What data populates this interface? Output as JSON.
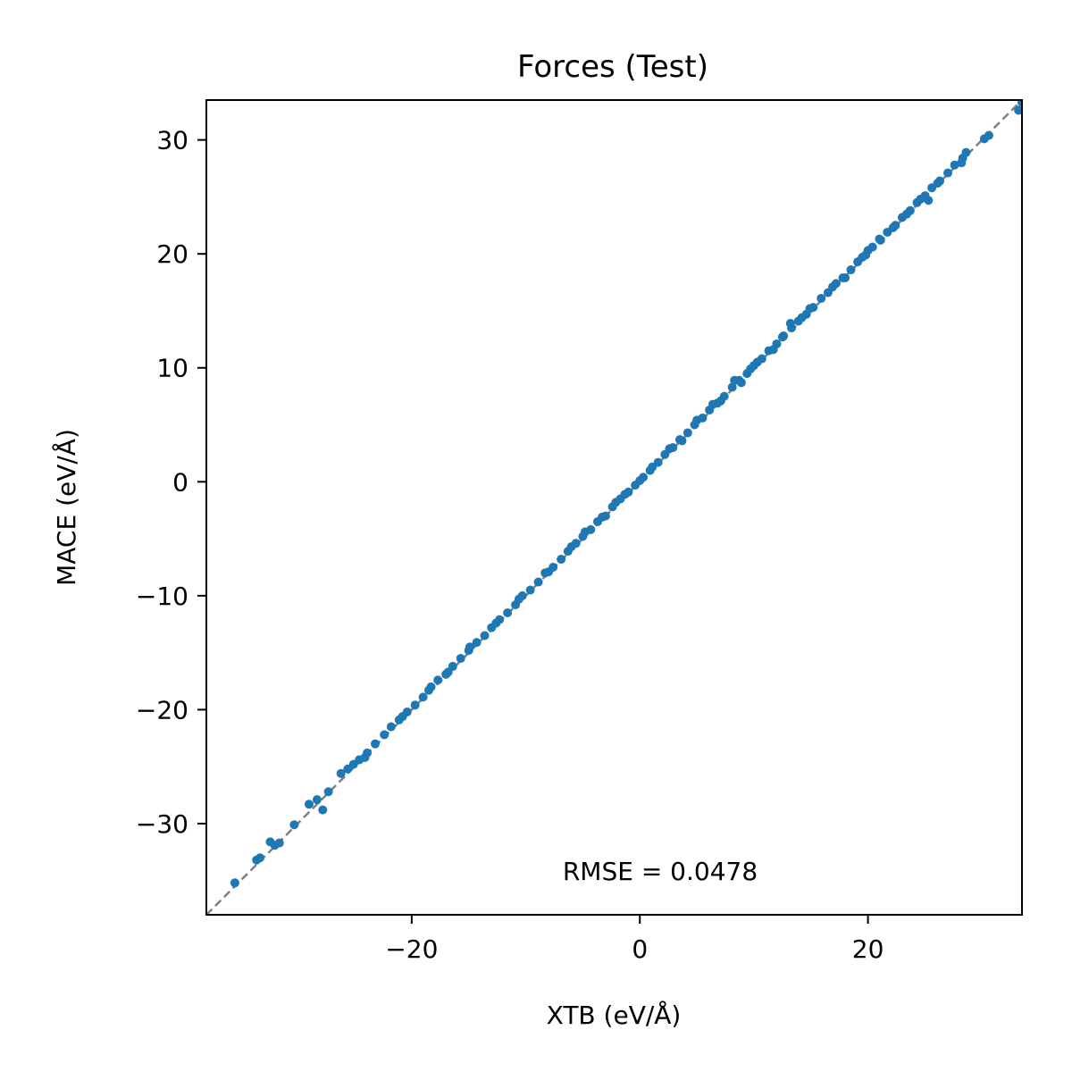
{
  "chart_data": {
    "type": "scatter",
    "title": "Forces (Test)",
    "xlabel": "XTB (eV/Å)",
    "ylabel": "MACE (eV/Å)",
    "xlim": [
      -38,
      33.5
    ],
    "ylim": [
      -38,
      33.5
    ],
    "xticks": [
      -20,
      0,
      20
    ],
    "xtick_labels": [
      "−20",
      "0",
      "20"
    ],
    "yticks": [
      -30,
      -20,
      -10,
      0,
      10,
      20,
      30
    ],
    "ytick_labels": [
      "−30",
      "−20",
      "−10",
      "0",
      "10",
      "20",
      "30"
    ],
    "annotation": "RMSE = 0.0478",
    "reference_line": {
      "style": "dashed",
      "color": "#808080",
      "from": [
        -38,
        -38
      ],
      "to": [
        33.5,
        33.5
      ]
    },
    "grid": false,
    "legend": "none",
    "series": [
      {
        "color": "#1f77b4",
        "points": [
          [
            -35.5,
            -35.2
          ],
          [
            -33.6,
            -33.2
          ],
          [
            -33.3,
            -33.0
          ],
          [
            -32.4,
            -31.6
          ],
          [
            -32.0,
            -31.9
          ],
          [
            -31.6,
            -31.7
          ],
          [
            -30.3,
            -30.1
          ],
          [
            -29.0,
            -28.3
          ],
          [
            -28.3,
            -27.9
          ],
          [
            -27.8,
            -28.8
          ],
          [
            -27.3,
            -27.2
          ],
          [
            -26.2,
            -25.6
          ],
          [
            -25.6,
            -25.2
          ],
          [
            -25.1,
            -24.8
          ],
          [
            -24.6,
            -24.4
          ],
          [
            -23.9,
            -23.8
          ],
          [
            -23.2,
            -23.0
          ],
          [
            -22.4,
            -22.2
          ],
          [
            -21.8,
            -21.5
          ],
          [
            -21.1,
            -20.9
          ],
          [
            -20.4,
            -20.2
          ],
          [
            -19.7,
            -19.6
          ],
          [
            -19.0,
            -18.9
          ],
          [
            -18.3,
            -18.0
          ],
          [
            -17.7,
            -17.4
          ],
          [
            -17.0,
            -16.9
          ],
          [
            -16.4,
            -16.2
          ],
          [
            -15.7,
            -15.5
          ],
          [
            -15.0,
            -14.8
          ],
          [
            -14.3,
            -14.1
          ],
          [
            -13.6,
            -13.5
          ],
          [
            -13.0,
            -12.8
          ],
          [
            -12.3,
            -12.1
          ],
          [
            -11.6,
            -11.5
          ],
          [
            -10.9,
            -10.8
          ],
          [
            -10.3,
            -10.0
          ],
          [
            -9.6,
            -9.5
          ],
          [
            -8.9,
            -8.8
          ],
          [
            -8.3,
            -8.0
          ],
          [
            -7.6,
            -7.5
          ],
          [
            -6.9,
            -6.8
          ],
          [
            -6.3,
            -6.1
          ],
          [
            -5.6,
            -5.4
          ],
          [
            -5.0,
            -4.8
          ],
          [
            -4.3,
            -4.2
          ],
          [
            -3.7,
            -3.5
          ],
          [
            -3.0,
            -3.0
          ],
          [
            -2.4,
            -2.2
          ],
          [
            -1.7,
            -1.5
          ],
          [
            -1.0,
            -0.9
          ],
          [
            -0.4,
            -0.3
          ],
          [
            0.3,
            0.4
          ],
          [
            0.9,
            1.0
          ],
          [
            1.6,
            1.7
          ],
          [
            2.2,
            2.4
          ],
          [
            2.9,
            3.0
          ],
          [
            3.5,
            3.7
          ],
          [
            4.2,
            4.3
          ],
          [
            4.8,
            5.0
          ],
          [
            5.5,
            5.6
          ],
          [
            6.1,
            6.3
          ],
          [
            6.8,
            6.9
          ],
          [
            7.4,
            7.5
          ],
          [
            8.1,
            8.3
          ],
          [
            8.7,
            8.9
          ],
          [
            9.4,
            9.5
          ],
          [
            10.0,
            10.2
          ],
          [
            10.7,
            10.8
          ],
          [
            11.3,
            11.5
          ],
          [
            12.0,
            12.1
          ],
          [
            12.6,
            12.8
          ],
          [
            13.3,
            13.5
          ],
          [
            13.9,
            14.1
          ],
          [
            14.6,
            14.7
          ],
          [
            15.2,
            15.3
          ],
          [
            15.9,
            16.1
          ],
          [
            16.5,
            16.6
          ],
          [
            17.2,
            17.4
          ],
          [
            17.8,
            17.9
          ],
          [
            18.5,
            18.6
          ],
          [
            19.1,
            19.3
          ],
          [
            19.8,
            19.9
          ],
          [
            20.4,
            20.6
          ],
          [
            21.1,
            21.2
          ],
          [
            21.7,
            21.9
          ],
          [
            22.4,
            22.5
          ],
          [
            23.0,
            23.2
          ],
          [
            23.7,
            23.8
          ],
          [
            24.3,
            24.5
          ],
          [
            25.0,
            25.1
          ],
          [
            25.6,
            25.8
          ],
          [
            26.3,
            26.4
          ],
          [
            27.0,
            27.1
          ],
          [
            27.6,
            27.8
          ],
          [
            28.3,
            28.4
          ],
          [
            28.6,
            28.9
          ],
          [
            30.2,
            30.1
          ],
          [
            30.6,
            30.4
          ],
          [
            33.2,
            32.6
          ],
          [
            33.5,
            33.3
          ],
          [
            -12.6,
            -12.4
          ],
          [
            -6.0,
            -5.7
          ],
          [
            -3.3,
            -3.1
          ],
          [
            -1.3,
            -1.1
          ],
          [
            0.0,
            0.1
          ],
          [
            2.6,
            2.9
          ],
          [
            6.4,
            6.8
          ],
          [
            8.3,
            8.9
          ],
          [
            9.7,
            9.9
          ],
          [
            12.5,
            12.7
          ],
          [
            13.2,
            13.9
          ],
          [
            14.9,
            15.2
          ],
          [
            16.9,
            17.1
          ],
          [
            19.5,
            19.7
          ],
          [
            21.0,
            21.3
          ],
          [
            22.2,
            22.3
          ],
          [
            24.6,
            24.8
          ],
          [
            26.1,
            26.2
          ],
          [
            28.2,
            28.0
          ],
          [
            -24.1,
            -24.2
          ],
          [
            -20.8,
            -20.6
          ],
          [
            -18.5,
            -18.3
          ],
          [
            -16.8,
            -16.7
          ],
          [
            -14.9,
            -14.5
          ],
          [
            -10.6,
            -10.3
          ],
          [
            -8.0,
            -7.9
          ],
          [
            -4.8,
            -4.4
          ],
          [
            -2.1,
            -1.8
          ],
          [
            1.1,
            1.3
          ],
          [
            3.7,
            3.6
          ],
          [
            5.0,
            5.4
          ],
          [
            7.1,
            7.1
          ],
          [
            8.9,
            8.7
          ],
          [
            10.3,
            10.5
          ],
          [
            11.7,
            11.6
          ],
          [
            14.2,
            14.4
          ],
          [
            18.0,
            17.9
          ],
          [
            20.0,
            20.3
          ],
          [
            23.4,
            23.5
          ],
          [
            25.3,
            24.7
          ]
        ]
      }
    ]
  }
}
